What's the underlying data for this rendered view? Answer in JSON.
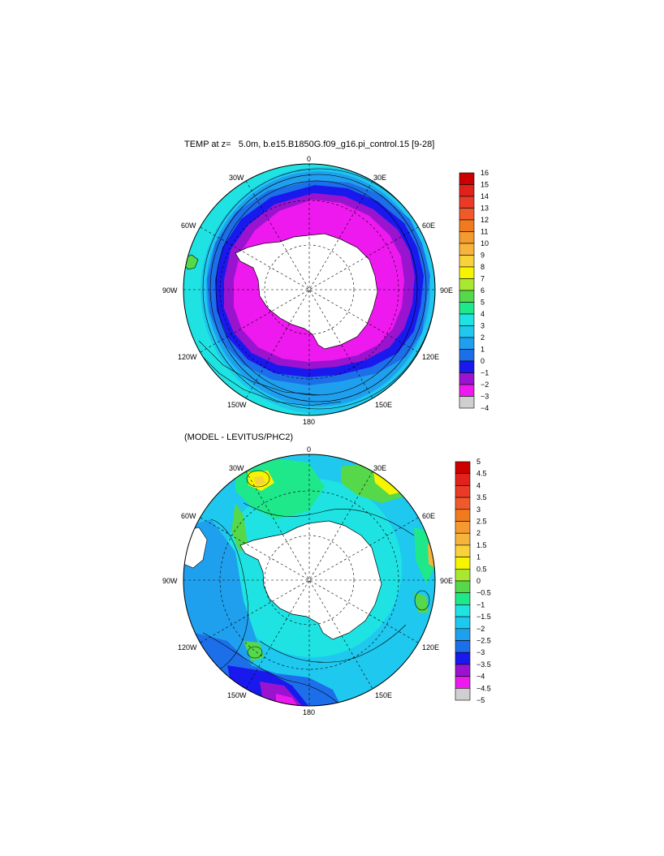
{
  "top_panel": {
    "title": "TEMP at z=   5.0m, b.e15.B1850G.f09_g16.pi_control.15 [9-28]",
    "longitude_labels": [
      "0",
      "30E",
      "60E",
      "90E",
      "120E",
      "150E",
      "180",
      "150W",
      "120W",
      "90W",
      "60W",
      "30W"
    ],
    "colorbar": {
      "labels": [
        "16",
        "15",
        "14",
        "13",
        "12",
        "11",
        "10",
        "9",
        "8",
        "7",
        "6",
        "5",
        "4",
        "3",
        "2",
        "1",
        "0",
        "−1",
        "−2",
        "−3",
        "−4"
      ],
      "colors": [
        "#cc0000",
        "#e0231a",
        "#ea3a28",
        "#f05a2a",
        "#f27a1e",
        "#f59a2e",
        "#f7b43c",
        "#f8d23a",
        "#f5f500",
        "#a8e830",
        "#55d84a",
        "#1ee88a",
        "#1fe3e3",
        "#1fc8ee",
        "#1fa0ee",
        "#1c6fe8",
        "#1919ee",
        "#9a14d0",
        "#ee19ee",
        "#cfcfcf",
        "#6a6a6a"
      ]
    }
  },
  "bottom_panel": {
    "title": "(MODEL - LEVITUS/PHC2)",
    "longitude_labels": [
      "0",
      "30E",
      "60E",
      "90E",
      "120E",
      "150E",
      "180",
      "150W",
      "120W",
      "90W",
      "60W",
      "30W"
    ],
    "colorbar": {
      "labels": [
        "5",
        "4.5",
        "4",
        "3.5",
        "3",
        "2.5",
        "2",
        "1.5",
        "1",
        "0.5",
        "0",
        "−0.5",
        "−1",
        "−1.5",
        "−2",
        "−2.5",
        "−3",
        "−3.5",
        "−4",
        "−4.5",
        "−5"
      ],
      "colors": [
        "#cc0000",
        "#e0231a",
        "#ea3a28",
        "#f05a2a",
        "#f27a1e",
        "#f59a2e",
        "#f7b43c",
        "#f8d23a",
        "#f5f500",
        "#a8e830",
        "#55d84a",
        "#1ee88a",
        "#1fe3e3",
        "#1fc8ee",
        "#1fa0ee",
        "#1c6fe8",
        "#1919ee",
        "#9a14d0",
        "#ee19ee",
        "#cfcfcf",
        "#6a6a6a"
      ]
    }
  }
}
